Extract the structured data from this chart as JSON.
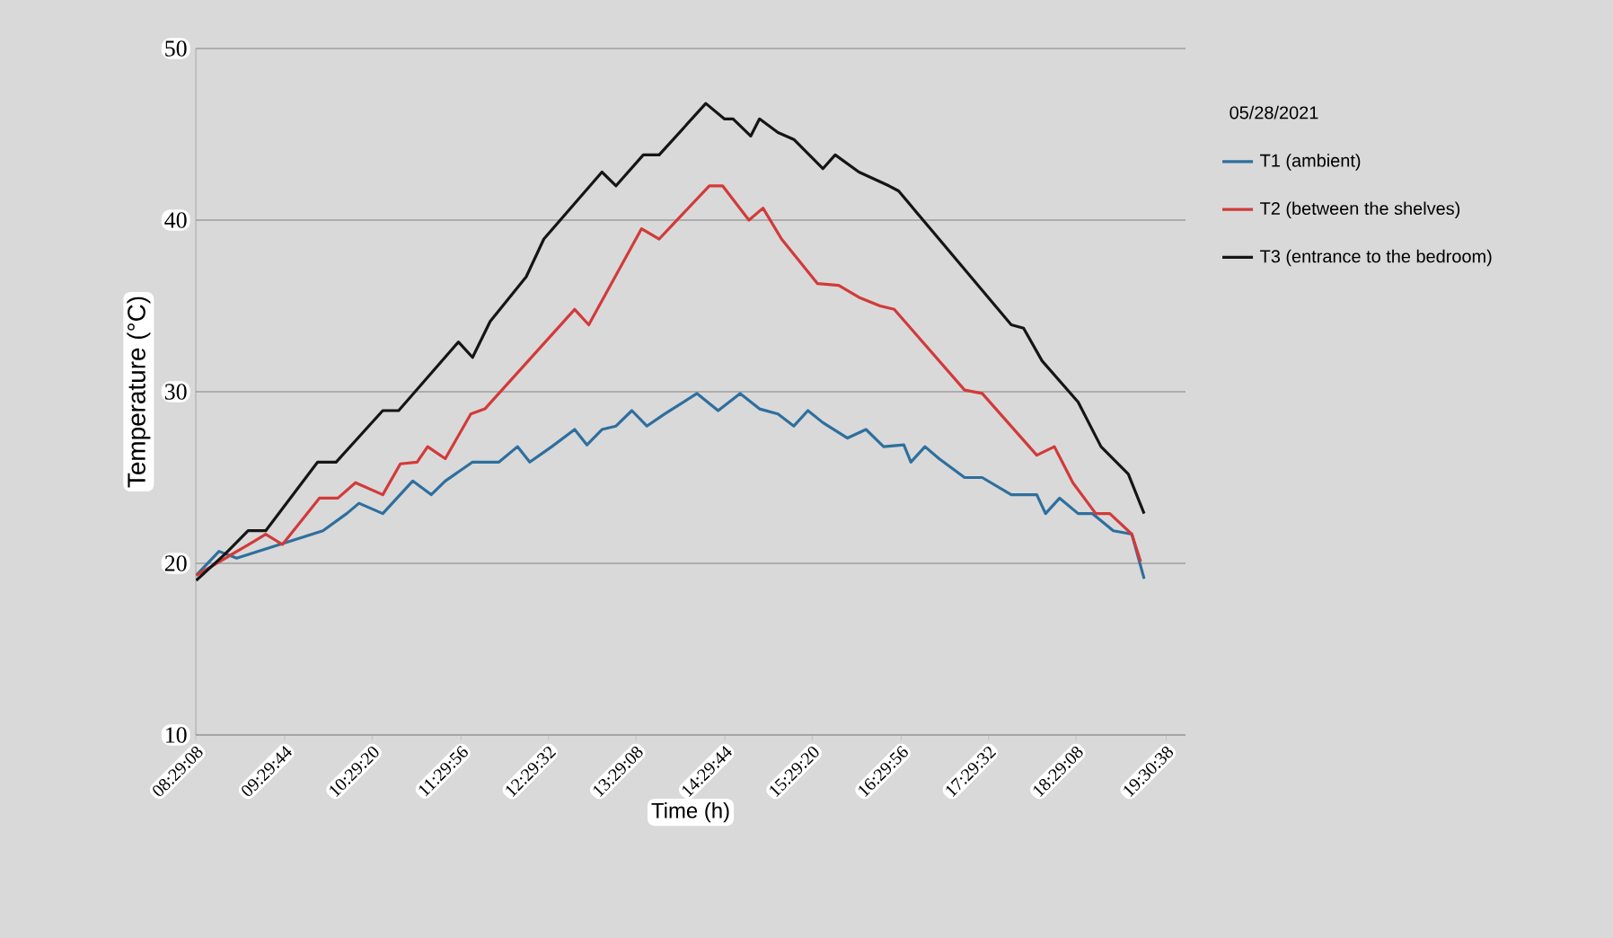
{
  "chart_data": {
    "type": "line",
    "xlabel": "Time (h)",
    "ylabel": "Temperature (°C)",
    "legend_title": "05/28/2021",
    "legend": "right",
    "grid": "y",
    "xlim": [
      8.4856,
      19.73
    ],
    "xticks": [
      {
        "value": 8.4856,
        "label": "08:29:08"
      },
      {
        "value": 9.4956,
        "label": "09:29:44"
      },
      {
        "value": 10.4889,
        "label": "10:29:20"
      },
      {
        "value": 11.4989,
        "label": "11:29:56"
      },
      {
        "value": 12.4922,
        "label": "12:29:32"
      },
      {
        "value": 13.4856,
        "label": "13:29:08"
      },
      {
        "value": 14.4956,
        "label": "14:29:44"
      },
      {
        "value": 15.4889,
        "label": "15:29:20"
      },
      {
        "value": 16.4989,
        "label": "16:29:56"
      },
      {
        "value": 17.4922,
        "label": "17:29:32"
      },
      {
        "value": 18.4856,
        "label": "18:29:08"
      },
      {
        "value": 19.5106,
        "label": "19:30:38"
      }
    ],
    "ylim": [
      10,
      50
    ],
    "yticks": [
      10,
      20,
      30,
      40,
      50
    ],
    "series": [
      {
        "name": "T1 (ambient)",
        "color": "#2e6f9e",
        "x": [
          8.49,
          8.75,
          8.95,
          9.93,
          10.2,
          10.34,
          10.61,
          10.95,
          11.16,
          11.32,
          11.63,
          11.93,
          12.14,
          12.28,
          12.53,
          12.79,
          12.93,
          13.1,
          13.26,
          13.44,
          13.61,
          13.81,
          14.18,
          14.42,
          14.67,
          14.89,
          15.1,
          15.28,
          15.44,
          15.61,
          15.89,
          16.1,
          16.3,
          16.53,
          16.61,
          16.77,
          16.93,
          17.22,
          17.42,
          17.75,
          18.04,
          18.14,
          18.3,
          18.51,
          18.67,
          18.91,
          19.12,
          19.26
        ],
        "values": [
          19.3,
          20.7,
          20.3,
          21.9,
          22.9,
          23.5,
          22.9,
          24.8,
          24.0,
          24.8,
          25.9,
          25.9,
          26.8,
          25.9,
          26.8,
          27.8,
          26.9,
          27.8,
          28.0,
          28.9,
          28.0,
          28.7,
          29.9,
          28.9,
          29.9,
          29.0,
          28.7,
          28.0,
          28.9,
          28.2,
          27.3,
          27.8,
          26.8,
          26.9,
          25.9,
          26.8,
          26.1,
          25.0,
          25.0,
          24.0,
          24.0,
          22.9,
          23.8,
          22.9,
          22.9,
          21.9,
          21.7,
          19.1
        ]
      },
      {
        "name": "T2 (between the shelves)",
        "color": "#d23a3a",
        "x": [
          8.49,
          9.12,
          9.28,
          9.47,
          9.89,
          10.1,
          10.3,
          10.61,
          10.81,
          11.0,
          11.12,
          11.32,
          11.61,
          11.77,
          12.79,
          12.95,
          13.55,
          13.75,
          14.32,
          14.47,
          14.77,
          14.93,
          15.14,
          15.55,
          15.79,
          16.02,
          16.26,
          16.42,
          17.22,
          17.42,
          18.04,
          18.24,
          18.45,
          18.71,
          18.87,
          19.12,
          19.22
        ],
        "values": [
          19.3,
          21.2,
          21.7,
          21.1,
          23.8,
          23.8,
          24.7,
          24.0,
          25.8,
          25.9,
          26.8,
          26.1,
          28.7,
          29.0,
          34.8,
          33.9,
          39.5,
          38.9,
          42.0,
          42.0,
          40.0,
          40.7,
          38.9,
          36.3,
          36.2,
          35.5,
          35.0,
          34.8,
          30.1,
          29.9,
          26.3,
          26.8,
          24.7,
          22.9,
          22.9,
          21.7,
          20.1
        ]
      },
      {
        "name": "T3 (entrance to the bedroom)",
        "color": "#151515",
        "x": [
          8.49,
          8.81,
          9.08,
          9.28,
          9.87,
          10.08,
          10.61,
          10.79,
          11.47,
          11.63,
          11.83,
          12.24,
          12.44,
          13.1,
          13.26,
          13.57,
          13.75,
          14.28,
          14.49,
          14.59,
          14.79,
          14.89,
          15.1,
          15.28,
          15.61,
          15.75,
          16.02,
          16.36,
          16.47,
          17.75,
          17.89,
          18.1,
          18.51,
          18.77,
          19.08,
          19.26
        ],
        "values": [
          19.0,
          20.5,
          21.9,
          21.9,
          25.9,
          25.9,
          28.9,
          28.9,
          32.9,
          32.0,
          34.1,
          36.7,
          38.9,
          42.8,
          42.0,
          43.8,
          43.8,
          46.8,
          45.9,
          45.9,
          44.9,
          45.9,
          45.1,
          44.7,
          43.0,
          43.8,
          42.8,
          42.0,
          41.7,
          33.9,
          33.7,
          31.8,
          29.4,
          26.8,
          25.2,
          22.9
        ]
      }
    ]
  }
}
